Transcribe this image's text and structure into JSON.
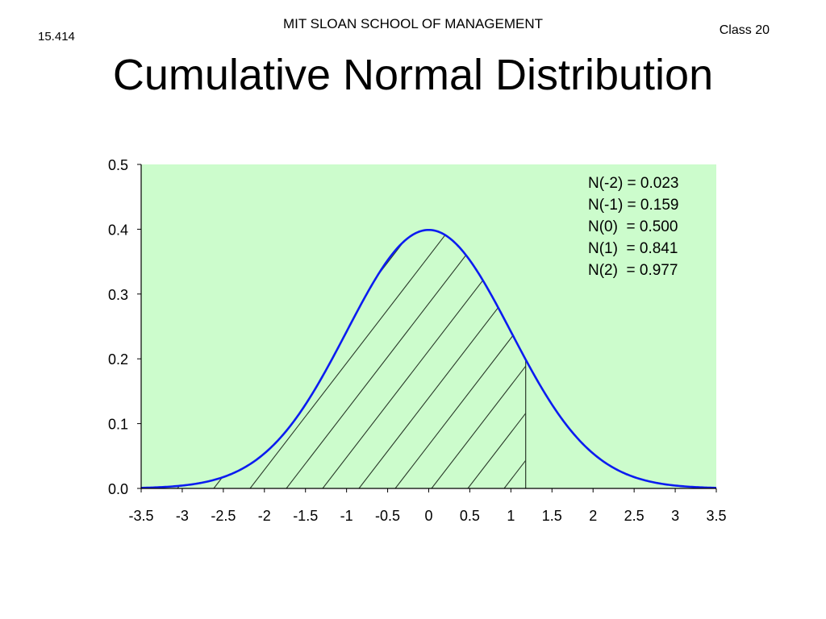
{
  "header": {
    "school": "MIT SLOAN SCHOOL OF MANAGEMENT",
    "course": "15.414",
    "class_label": "Class 20"
  },
  "slide": {
    "title": "Cumulative Normal Distribution"
  },
  "colors": {
    "plot_background": "#ccfccc",
    "curve": "#0b1cf0",
    "hatch": "#2a3a2a"
  },
  "chart_data": {
    "type": "area",
    "title": "",
    "xlabel": "",
    "ylabel": "",
    "xlim": [
      -3.5,
      3.5
    ],
    "ylim": [
      0,
      0.5
    ],
    "x_ticks": [
      -3.5,
      -3,
      -2.5,
      -2,
      -1.5,
      -1,
      -0.5,
      0,
      0.5,
      1,
      1.5,
      2,
      2.5,
      3,
      3.5
    ],
    "x_tick_labels": [
      "-3.5",
      "-3",
      "-2.5",
      "-2",
      "-1.5",
      "-1",
      "-0.5",
      "0",
      "0.5",
      "1",
      "1.5",
      "2",
      "2.5",
      "3",
      "3.5"
    ],
    "y_ticks": [
      0,
      0.1,
      0.2,
      0.3,
      0.4,
      0.5
    ],
    "y_tick_labels": [
      "0.0",
      "0.1",
      "0.2",
      "0.3",
      "0.4",
      "0.5"
    ],
    "grid": false,
    "series": [
      {
        "x": [
          -3.5,
          -3.0,
          -2.5,
          -2.0,
          -1.5,
          -1.0,
          -0.5,
          0.0,
          0.5,
          1.0,
          1.5,
          2.0,
          2.5,
          3.0,
          3.5
        ],
        "y": [
          0.001,
          0.004,
          0.018,
          0.054,
          0.13,
          0.242,
          0.352,
          0.399,
          0.352,
          0.242,
          0.13,
          0.054,
          0.018,
          0.004,
          0.001
        ]
      }
    ],
    "shaded_region": {
      "from": -3.5,
      "to": 1.18,
      "style": "hatched"
    },
    "annotations": [
      "N(-2) = 0.023",
      "N(-1) = 0.159",
      "N(0)  = 0.500",
      "N(1)  = 0.841",
      "N(2)  = 0.977"
    ],
    "annotation_placement": "top-right"
  }
}
